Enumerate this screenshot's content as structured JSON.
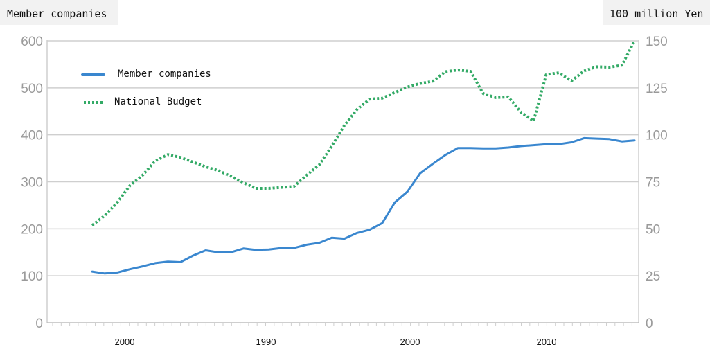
{
  "chart_data": {
    "type": "line",
    "left_axis_title": "Member companies",
    "right_axis_title": "100 million Yen",
    "left_ticks": [
      "0",
      "100",
      "200",
      "300",
      "400",
      "500",
      "600"
    ],
    "right_ticks": [
      "0",
      "25",
      "50",
      "75",
      "100",
      "125",
      "150"
    ],
    "ylim_left": [
      0,
      600
    ],
    "ylim_right": [
      0,
      150
    ],
    "x_tick_labels": [
      "2000",
      "1990",
      "2000",
      "2010"
    ],
    "grid": true,
    "legend_position": "top-left",
    "series": [
      {
        "name": "Member companies",
        "axis": "left",
        "color": "#3a87cf",
        "style": "solid",
        "values": [
          109,
          105,
          107,
          114,
          120,
          127,
          130,
          129,
          143,
          154,
          150,
          150,
          158,
          155,
          156,
          159,
          159,
          166,
          170,
          181,
          179,
          191,
          198,
          212,
          256,
          279,
          318,
          338,
          357,
          372,
          372,
          371,
          371,
          373,
          376,
          378,
          380,
          380,
          384,
          393,
          392,
          391,
          386,
          388
        ]
      },
      {
        "name": "National Budget",
        "axis": "right",
        "color": "#33aa66",
        "style": "dotted",
        "values": [
          51.8,
          57,
          64,
          73,
          78.5,
          86,
          89.5,
          88,
          85.5,
          83,
          81,
          78,
          74.5,
          71.5,
          71.5,
          72,
          72.5,
          78.5,
          84,
          94,
          105,
          113.5,
          119,
          119.5,
          122.5,
          125.5,
          127.3,
          128.5,
          133.6,
          134.5,
          133.8,
          122,
          119.8,
          120.2,
          112,
          107.4,
          132,
          133,
          128.7,
          134,
          136.2,
          136,
          137,
          150
        ]
      }
    ]
  }
}
